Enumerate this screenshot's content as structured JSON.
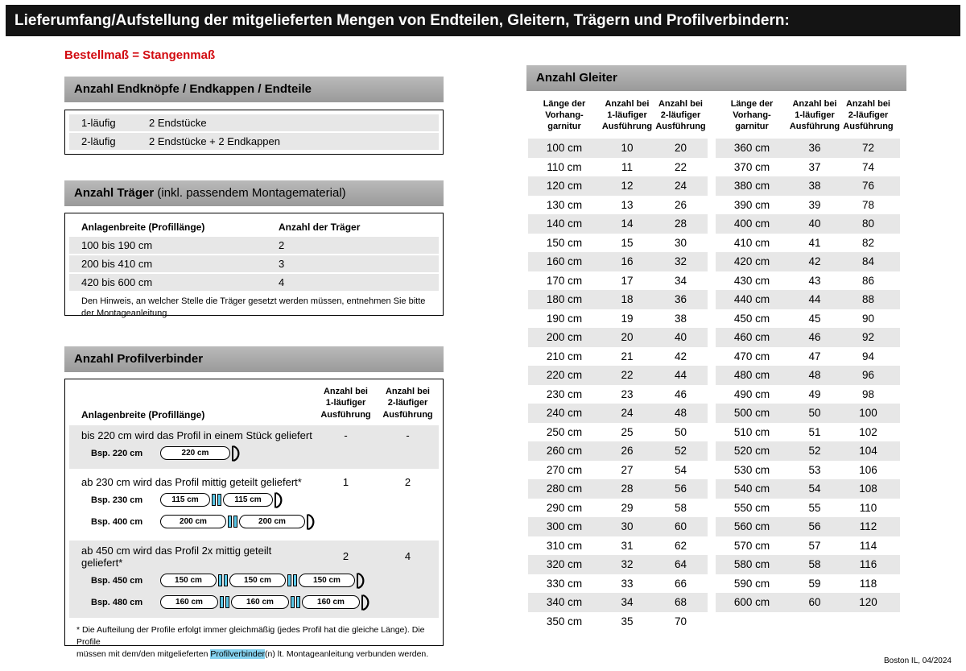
{
  "page": {
    "title": "Lieferumfang/Aufstellung der mitgelieferten Mengen von Endteilen, Gleitern, Trägern und Profilverbindern:",
    "subtitle": "Bestellmaß = Stangenmaß",
    "footer": "Boston IL, 04/2024"
  },
  "colors": {
    "red": "#d20a10",
    "cyan": "#5bc8e8",
    "highlight_blue": "#86d3f0"
  },
  "endteile": {
    "header": "Anzahl Endknöpfe / Endkappen / Endteile",
    "rows": [
      {
        "label": "1-läufig",
        "value": "2 Endstücke"
      },
      {
        "label": "2-läufig",
        "value": "2 Endstücke + 2 Endkappen"
      }
    ]
  },
  "traeger": {
    "header_bold": "Anzahl Träger",
    "header_rest": " (inkl. passendem Montagematerial)",
    "col1": "Anlagenbreite (Profillänge)",
    "col2": "Anzahl der Träger",
    "rows": [
      {
        "range": "100 bis 190 cm",
        "count": "2"
      },
      {
        "range": "200 bis 410 cm",
        "count": "3"
      },
      {
        "range": "420 bis 600 cm",
        "count": "4"
      }
    ],
    "note": "Den Hinweis, an welcher Stelle die Träger gesetzt werden müssen, entnehmen Sie bitte\nder Montageanleitung."
  },
  "profilverbinder": {
    "header": "Anzahl Profilverbinder",
    "col1": "Anlagenbreite (Profillänge)",
    "col2": "Anzahl bei\n1-läufiger\nAusführung",
    "col3": "Anzahl bei\n2-läufiger\nAusführung",
    "sections": [
      {
        "text": "bis 220 cm wird das Profil in einem Stück geliefert",
        "v1": "-",
        "v2": "-",
        "examples": [
          {
            "label": "Bsp. 220 cm",
            "segments": [
              "220 cm"
            ]
          }
        ]
      },
      {
        "text": "ab 230 cm wird das Profil mittig geteilt geliefert*",
        "v1": "1",
        "v2": "2",
        "examples": [
          {
            "label": "Bsp. 230 cm",
            "segments": [
              "115 cm",
              "115 cm"
            ]
          },
          {
            "label": "Bsp. 400 cm",
            "segments": [
              "200 cm",
              "200 cm"
            ]
          }
        ]
      },
      {
        "text": "ab 450 cm wird das Profil 2x mittig geteilt geliefert*",
        "v1": "2",
        "v2": "4",
        "examples": [
          {
            "label": "Bsp. 450 cm",
            "segments": [
              "150 cm",
              "150 cm",
              "150 cm"
            ]
          },
          {
            "label": "Bsp. 480 cm",
            "segments": [
              "160 cm",
              "160 cm",
              "160 cm"
            ]
          }
        ]
      }
    ],
    "footnote_pre": "* Die Aufteilung der Profile erfolgt immer gleichmäßig (jedes Profil hat die gleiche Länge). Die Profile\nmüssen mit dem/den mitgelieferten ",
    "footnote_highlight": "Profilverbinder",
    "footnote_post": "(n) lt. Montageanleitung verbunden werden."
  },
  "gleiter": {
    "header": "Anzahl Gleiter",
    "col1": "Länge der\nVorhang-\ngarnitur",
    "col2": "Anzahl bei\n1-läufiger\nAusführung",
    "col3": "Anzahl bei\n2-läufiger\nAusführung",
    "table1": [
      [
        "100 cm",
        "10",
        "20"
      ],
      [
        "110 cm",
        "11",
        "22"
      ],
      [
        "120 cm",
        "12",
        "24"
      ],
      [
        "130 cm",
        "13",
        "26"
      ],
      [
        "140 cm",
        "14",
        "28"
      ],
      [
        "150 cm",
        "15",
        "30"
      ],
      [
        "160 cm",
        "16",
        "32"
      ],
      [
        "170 cm",
        "17",
        "34"
      ],
      [
        "180 cm",
        "18",
        "36"
      ],
      [
        "190 cm",
        "19",
        "38"
      ],
      [
        "200 cm",
        "20",
        "40"
      ],
      [
        "210 cm",
        "21",
        "42"
      ],
      [
        "220 cm",
        "22",
        "44"
      ],
      [
        "230 cm",
        "23",
        "46"
      ],
      [
        "240 cm",
        "24",
        "48"
      ],
      [
        "250 cm",
        "25",
        "50"
      ],
      [
        "260 cm",
        "26",
        "52"
      ],
      [
        "270 cm",
        "27",
        "54"
      ],
      [
        "280 cm",
        "28",
        "56"
      ],
      [
        "290 cm",
        "29",
        "58"
      ],
      [
        "300 cm",
        "30",
        "60"
      ],
      [
        "310 cm",
        "31",
        "62"
      ],
      [
        "320 cm",
        "32",
        "64"
      ],
      [
        "330 cm",
        "33",
        "66"
      ],
      [
        "340 cm",
        "34",
        "68"
      ],
      [
        "350 cm",
        "35",
        "70"
      ]
    ],
    "table2": [
      [
        "360 cm",
        "36",
        "72"
      ],
      [
        "370 cm",
        "37",
        "74"
      ],
      [
        "380 cm",
        "38",
        "76"
      ],
      [
        "390 cm",
        "39",
        "78"
      ],
      [
        "400 cm",
        "40",
        "80"
      ],
      [
        "410 cm",
        "41",
        "82"
      ],
      [
        "420 cm",
        "42",
        "84"
      ],
      [
        "430 cm",
        "43",
        "86"
      ],
      [
        "440 cm",
        "44",
        "88"
      ],
      [
        "450 cm",
        "45",
        "90"
      ],
      [
        "460 cm",
        "46",
        "92"
      ],
      [
        "470 cm",
        "47",
        "94"
      ],
      [
        "480 cm",
        "48",
        "96"
      ],
      [
        "490 cm",
        "49",
        "98"
      ],
      [
        "500 cm",
        "50",
        "100"
      ],
      [
        "510 cm",
        "51",
        "102"
      ],
      [
        "520 cm",
        "52",
        "104"
      ],
      [
        "530 cm",
        "53",
        "106"
      ],
      [
        "540 cm",
        "54",
        "108"
      ],
      [
        "550 cm",
        "55",
        "110"
      ],
      [
        "560 cm",
        "56",
        "112"
      ],
      [
        "570 cm",
        "57",
        "114"
      ],
      [
        "580 cm",
        "58",
        "116"
      ],
      [
        "590 cm",
        "59",
        "118"
      ],
      [
        "600 cm",
        "60",
        "120"
      ]
    ]
  }
}
